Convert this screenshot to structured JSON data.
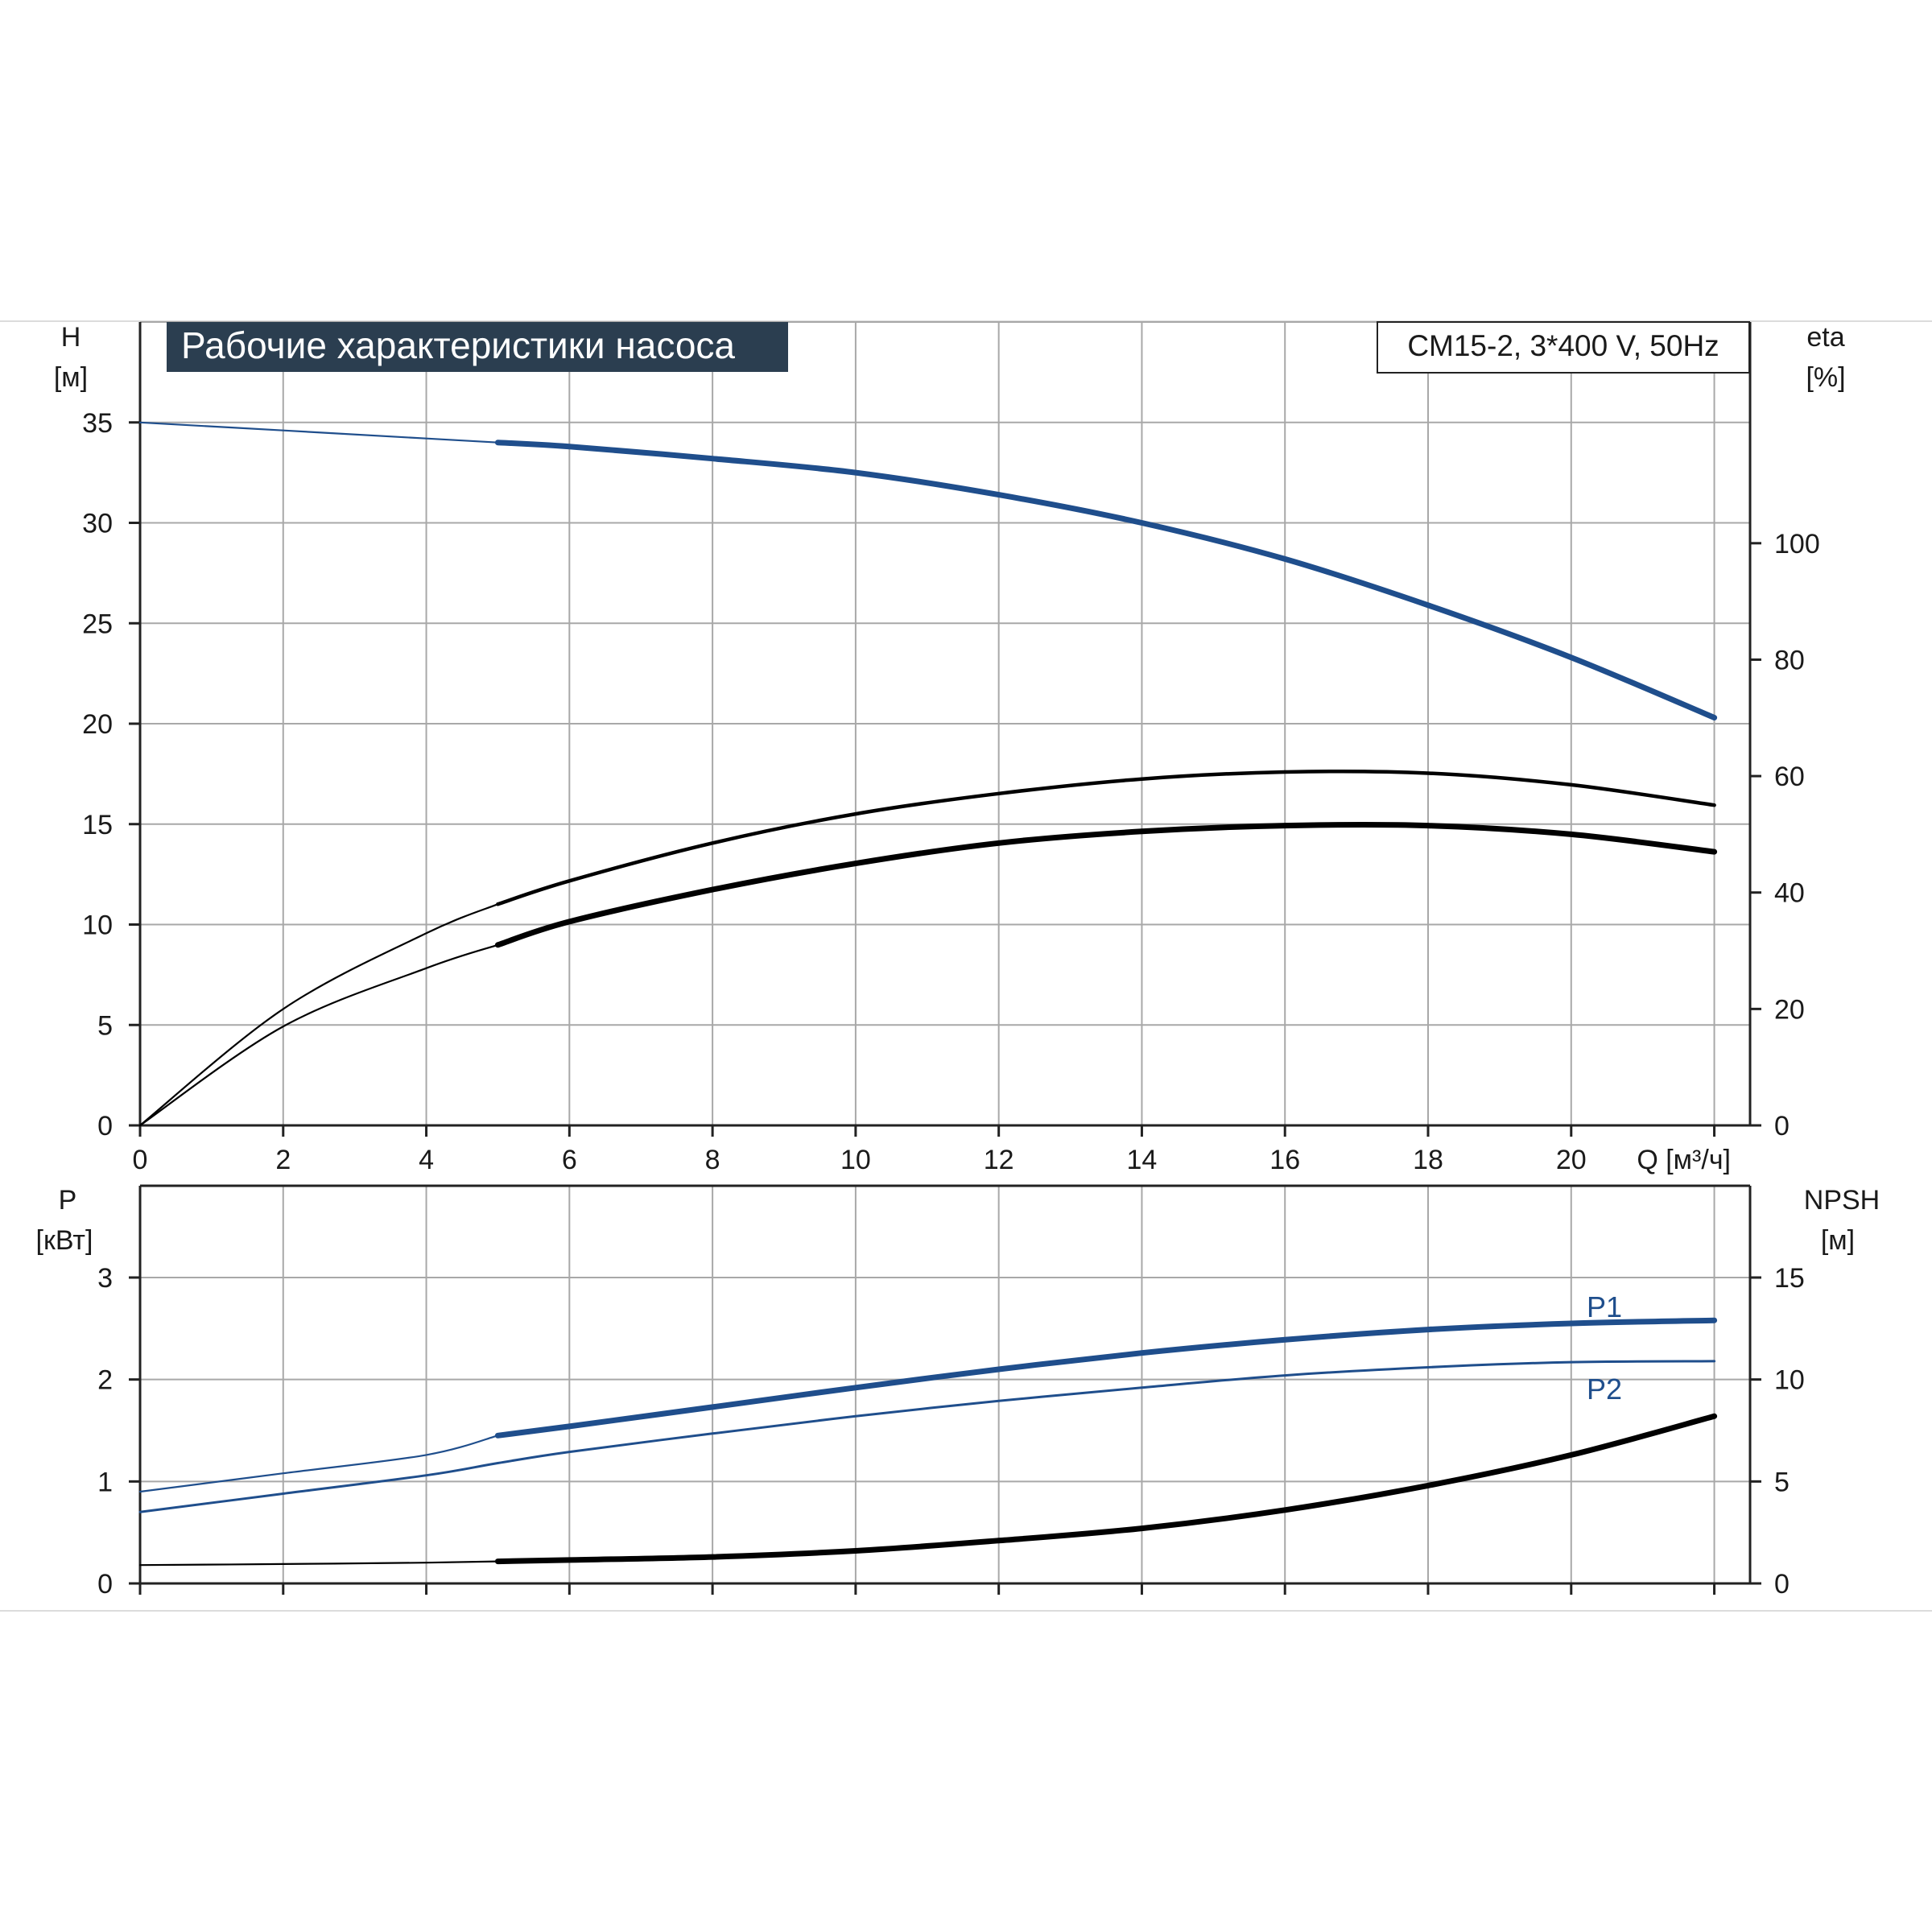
{
  "title": "Рабочие характеристики насоса",
  "model": "CM15-2, 3*400 V, 50Hz",
  "colors": {
    "blue": "#1f4e8c",
    "black": "#000000",
    "title_bg": "#2b3e50",
    "grid": "#a8a8a8"
  },
  "chart_data": [
    {
      "type": "line",
      "name": "performance",
      "xlabel": "Q [м³/ч]",
      "ylabel_left": [
        "H",
        "[м]"
      ],
      "ylabel_right": [
        "eta",
        "[%]"
      ],
      "xlim": [
        0,
        22.5
      ],
      "ylim_left": [
        0,
        40
      ],
      "ylim_right": [
        0,
        138
      ],
      "x_ticks": [
        0,
        2,
        4,
        6,
        8,
        10,
        12,
        14,
        16,
        18,
        20
      ],
      "y_ticks_left": [
        0,
        5,
        10,
        15,
        20,
        25,
        30,
        35
      ],
      "y_ticks_right": [
        0,
        20,
        40,
        60,
        80,
        100
      ],
      "grid": true,
      "series": [
        {
          "name": "H",
          "axis": "left",
          "color": "blue",
          "x": [
            0,
            2,
            4,
            5,
            6,
            8,
            10,
            12,
            14,
            16,
            18,
            20,
            22
          ],
          "y": [
            35,
            34.6,
            34.2,
            34.0,
            33.8,
            33.2,
            32.5,
            31.4,
            30.0,
            28.2,
            25.9,
            23.3,
            20.3
          ],
          "thin_until": 5
        },
        {
          "name": "eta",
          "axis": "right",
          "color": "black",
          "x": [
            0,
            2,
            4,
            5,
            6,
            8,
            10,
            12,
            14,
            16,
            18,
            20,
            22
          ],
          "y": [
            0,
            20,
            33,
            38,
            42,
            48.5,
            53.5,
            57,
            59.5,
            60.7,
            60.5,
            58.5,
            55
          ],
          "thin_until": 5,
          "weight": "thin"
        },
        {
          "name": "eta2",
          "axis": "right",
          "color": "black",
          "x": [
            0,
            2,
            4,
            5,
            6,
            8,
            10,
            12,
            14,
            16,
            18,
            20,
            22
          ],
          "y": [
            0,
            17,
            27,
            31,
            35,
            40.5,
            45,
            48.5,
            50.5,
            51.5,
            51.5,
            50,
            47
          ],
          "thin_until": 5,
          "weight": "thick"
        }
      ]
    },
    {
      "type": "line",
      "name": "power",
      "ylabel_left": [
        "P",
        "[кВт]"
      ],
      "ylabel_right": [
        "NPSH",
        "[м]"
      ],
      "xlim": [
        0,
        22.5
      ],
      "ylim_left": [
        0,
        3.9
      ],
      "ylim_right": [
        0,
        19.5
      ],
      "y_ticks_left": [
        0,
        1,
        2,
        3
      ],
      "y_ticks_right": [
        0,
        5,
        10,
        15
      ],
      "grid": true,
      "series": [
        {
          "name": "P1",
          "axis": "left",
          "color": "blue",
          "label": "P1",
          "x": [
            0,
            2,
            4,
            5,
            6,
            8,
            10,
            12,
            14,
            16,
            18,
            20,
            22
          ],
          "y": [
            0.9,
            1.08,
            1.26,
            1.45,
            1.54,
            1.73,
            1.92,
            2.1,
            2.26,
            2.39,
            2.49,
            2.55,
            2.58
          ],
          "thin_until": 5
        },
        {
          "name": "P2",
          "axis": "left",
          "color": "blue",
          "label": "P2",
          "weight": "thin",
          "x": [
            0,
            2,
            4,
            5,
            6,
            8,
            10,
            12,
            14,
            16,
            18,
            20,
            22
          ],
          "y": [
            0.7,
            0.88,
            1.06,
            1.18,
            1.29,
            1.47,
            1.64,
            1.79,
            1.92,
            2.04,
            2.12,
            2.17,
            2.18
          ]
        },
        {
          "name": "NPSH",
          "axis": "right",
          "color": "black",
          "x": [
            0,
            2,
            4,
            5,
            6,
            8,
            10,
            12,
            14,
            16,
            18,
            20,
            22
          ],
          "y": [
            0.9,
            0.95,
            1.02,
            1.08,
            1.15,
            1.3,
            1.6,
            2.1,
            2.7,
            3.6,
            4.8,
            6.3,
            8.2
          ],
          "thin_until": 5
        }
      ]
    }
  ]
}
